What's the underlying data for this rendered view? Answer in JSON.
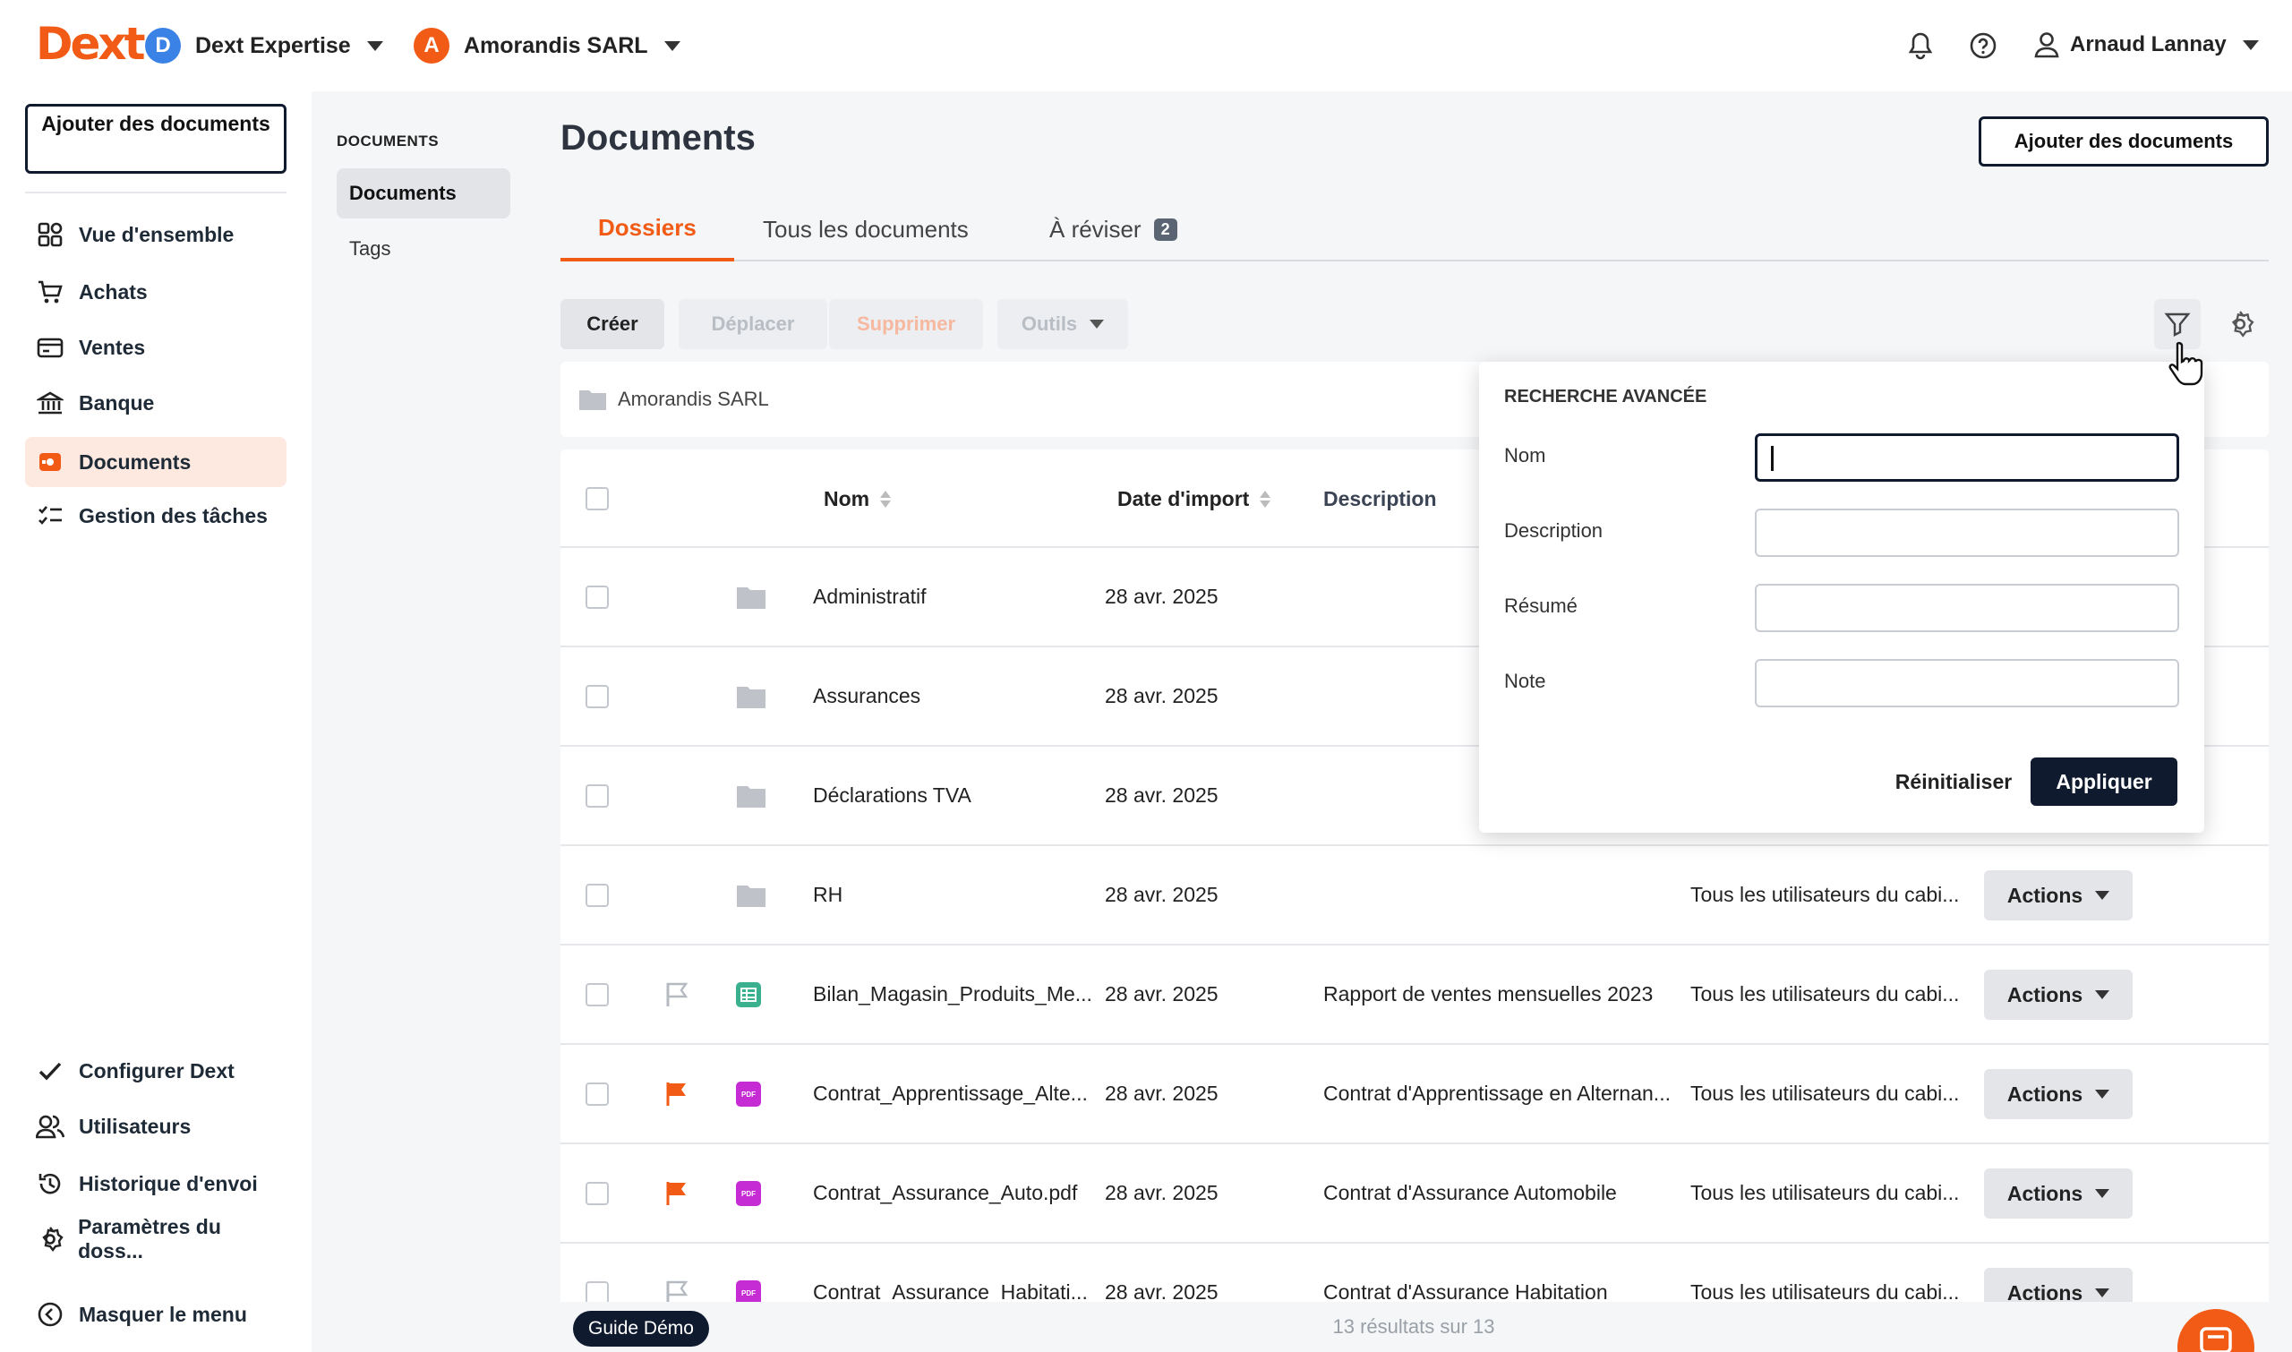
{
  "topbar": {
    "logo": "Dext",
    "org1": {
      "initial": "D",
      "name": "Dext Expertise",
      "color": "#3b82e6"
    },
    "org2": {
      "initial": "A",
      "name": "Amorandis SARL",
      "color": "#f25b16"
    },
    "user": "Arnaud Lannay"
  },
  "sidebar": {
    "add_button": "Ajouter des documents",
    "items": [
      {
        "label": "Vue d'ensemble",
        "icon": "dashboard-icon"
      },
      {
        "label": "Achats",
        "icon": "cart-icon"
      },
      {
        "label": "Ventes",
        "icon": "card-icon"
      },
      {
        "label": "Banque",
        "icon": "bank-icon"
      },
      {
        "label": "Documents",
        "icon": "documents-icon",
        "active": true
      },
      {
        "label": "Gestion des tâches",
        "icon": "tasks-icon"
      }
    ],
    "bottom_items": [
      {
        "label": "Configurer Dext",
        "icon": "check-icon"
      },
      {
        "label": "Utilisateurs",
        "icon": "users-icon"
      },
      {
        "label": "Historique d'envoi",
        "icon": "history-icon"
      },
      {
        "label": "Paramètres du doss...",
        "icon": "settings-icon"
      },
      {
        "label": "Masquer le menu",
        "icon": "collapse-icon"
      }
    ]
  },
  "subnav": {
    "header": "DOCUMENTS",
    "items": [
      "Documents",
      "Tags"
    ]
  },
  "main": {
    "title": "Documents",
    "add_docs": "Ajouter des documents",
    "tabs": [
      {
        "label": "Dossiers"
      },
      {
        "label": "Tous les documents"
      },
      {
        "label": "À réviser",
        "badge": "2"
      }
    ],
    "toolbar": {
      "create": "Créer",
      "move": "Déplacer",
      "delete": "Supprimer",
      "tools": "Outils"
    },
    "breadcrumb": "Amorandis SARL",
    "columns": {
      "name": "Nom",
      "date": "Date d'import",
      "description": "Description"
    },
    "rows": [
      {
        "name": "Administratif",
        "date": "28 avr. 2025",
        "description": "",
        "access": "",
        "type": "folder",
        "flag": "none",
        "actions": ""
      },
      {
        "name": "Assurances",
        "date": "28 avr. 2025",
        "description": "",
        "access": "",
        "type": "folder",
        "flag": "none",
        "actions": ""
      },
      {
        "name": "Déclarations TVA",
        "date": "28 avr. 2025",
        "description": "",
        "access": "",
        "type": "folder",
        "flag": "none",
        "actions": ""
      },
      {
        "name": "RH",
        "date": "28 avr. 2025",
        "description": "",
        "access": "Tous les utilisateurs du cabi...",
        "type": "folder",
        "flag": "none",
        "actions": "Actions"
      },
      {
        "name": "Bilan_Magasin_Produits_Me...",
        "date": "28 avr. 2025",
        "description": "Rapport de ventes mensuelles 2023",
        "access": "Tous les utilisateurs du cabi...",
        "type": "sheet",
        "flag": "outline",
        "actions": "Actions"
      },
      {
        "name": "Contrat_Apprentissage_Alte...",
        "date": "28 avr. 2025",
        "description": "Contrat d'Apprentissage en Alternan...",
        "access": "Tous les utilisateurs du cabi...",
        "type": "pdf",
        "flag": "filled",
        "actions": "Actions"
      },
      {
        "name": "Contrat_Assurance_Auto.pdf",
        "date": "28 avr. 2025",
        "description": "Contrat d'Assurance Automobile",
        "access": "Tous les utilisateurs du cabi...",
        "type": "pdf",
        "flag": "filled",
        "actions": "Actions"
      },
      {
        "name": "Contrat_Assurance_Habitati...",
        "date": "28 avr. 2025",
        "description": "Contrat d'Assurance Habitation",
        "access": "Tous les utilisateurs du cabi...",
        "type": "pdf",
        "flag": "outline",
        "actions": "Actions"
      }
    ],
    "footer": "13 résultats sur 13"
  },
  "advanced_search": {
    "title": "RECHERCHE AVANCÉE",
    "fields": [
      {
        "label": "Nom",
        "value": ""
      },
      {
        "label": "Description",
        "value": ""
      },
      {
        "label": "Résumé",
        "value": ""
      },
      {
        "label": "Note",
        "value": ""
      }
    ],
    "reset": "Réinitialiser",
    "apply": "Appliquer"
  },
  "guide": "Guide Démo",
  "colors": {
    "accent": "#f25b16",
    "dark": "#0f1a2e"
  }
}
